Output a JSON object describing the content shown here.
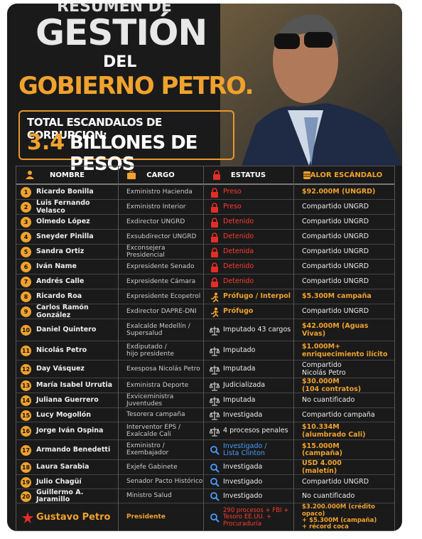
{
  "header": {
    "kicker": "RESUMEN DE",
    "title_1": "GESTIÓN",
    "title_2": "DEL",
    "title_3": "GOBIERNO PETRO.",
    "total_label": "TOTAL ESCANDALOS DE CORRUPCION:",
    "total_amount": "3.4",
    "total_unit": "BILLONES DE PESOS"
  },
  "table": {
    "headers": [
      "NOMBRE",
      "CARGO",
      "ESTATUS",
      "VALOR ESCÁNDALO"
    ],
    "rows": [
      {
        "num": "1",
        "name": "Ricardo Bonilla",
        "cargo": "Exministro Hacienda",
        "status": "Preso",
        "value": "$92.000M (UNGRD)"
      },
      {
        "num": "2",
        "name": "Luis Fernando Velasco",
        "cargo": "Exministro Interior",
        "status": "Preso",
        "value": "Compartido UNGRD"
      },
      {
        "num": "3",
        "name": "Olmedo López",
        "cargo": "Exdirector UNGRD",
        "status": "Detenido",
        "value": "Compartido UNGRD"
      },
      {
        "num": "4",
        "name": "Sneyder Pinilla",
        "cargo": "Exsubdirector UNGRD",
        "status": "Detenido",
        "value": "Compartido UNGRD"
      },
      {
        "num": "5",
        "name": "Sandra Ortiz",
        "cargo": "Exconsejera Presidencial",
        "status": "Detenida",
        "value": "Compartido UNGRD"
      },
      {
        "num": "6",
        "name": "Iván Name",
        "cargo": "Expresidente Senado",
        "status": "Detenido",
        "value": "Compartido UNGRD"
      },
      {
        "num": "7",
        "name": "Andrés Calle",
        "cargo": "Expresidente Cámara",
        "status": "Detenido",
        "value": "Compartido UNGRD"
      },
      {
        "num": "8",
        "name": "Ricardo Roa",
        "cargo": "Expresidente Ecopetrol",
        "status": "Prófugo / Interpol",
        "value": "$5.300M campaña"
      },
      {
        "num": "9",
        "name": "Carlos Ramón González",
        "cargo": "Exdirector DAPRE-DNI",
        "status": "Prófugo",
        "value": "Compartido UNGRD"
      },
      {
        "num": "10",
        "name": "Daniel Quintero",
        "cargo": "Exalcalde Medellín /\nSupersalud",
        "status": "Imputado 43 cargos",
        "value": "$42.000M (Aguas Vivas)"
      },
      {
        "num": "11",
        "name": "Nicolás Petro",
        "cargo": "Exdiputado /\nhijo presidente",
        "status": "Imputado",
        "value": "$1.000M+\nenriquecimiento ilícito"
      },
      {
        "num": "12",
        "name": "Day Vásquez",
        "cargo": "Exesposa Nicolás Petro",
        "status": "Imputada",
        "value": "Compartido\nNicolás Petro"
      },
      {
        "num": "13",
        "name": "María Isabel Urrutia",
        "cargo": "Exministra Deporte",
        "status": "Judicializada",
        "value": "$30.000M\n(104 contratos)"
      },
      {
        "num": "14",
        "name": "Juliana Guerrero",
        "cargo": "Exviceministra Juventudes",
        "status": "Imputada",
        "value": "No cuantificado"
      },
      {
        "num": "15",
        "name": "Lucy Mogollón",
        "cargo": "Tesorera campaña",
        "status": "Investigada",
        "value": "Compartido campaña"
      },
      {
        "num": "16",
        "name": "Jorge Iván Ospina",
        "cargo": "Interventor EPS /\nExalcalde Cali",
        "status": "4 procesos penales",
        "value": "$10.334M\n(alumbrado Cali)"
      },
      {
        "num": "17",
        "name": "Armando Benedetti",
        "cargo": "Exministro /\nExembajador",
        "status": "Investigado /\nLista Clinton",
        "value": "$15.000M\n(campaña)"
      },
      {
        "num": "18",
        "name": "Laura Sarabia",
        "cargo": "Exjefe Gabinete",
        "status": "Investigada",
        "value": "USD 4.000\n(maletín)"
      },
      {
        "num": "19",
        "name": "Julio Chagüí",
        "cargo": "Senador Pacto Histórico",
        "status": "Investigado",
        "value": "Compartido UNGRD"
      },
      {
        "num": "20",
        "name": "Guillermo A. Jaramillo",
        "cargo": "Ministro Salud",
        "status": "Investigado",
        "value": "No cuantificado"
      },
      {
        "name": "Gustavo Petro",
        "cargo": "Presidente",
        "status": "290 procesos + FBI +\nTesoro EE.UU. +\nProcuraduría",
        "value": "$3.200.000M (crédito opaco)\n+ $5.300M (campaña)\n+ récord coca"
      }
    ]
  }
}
